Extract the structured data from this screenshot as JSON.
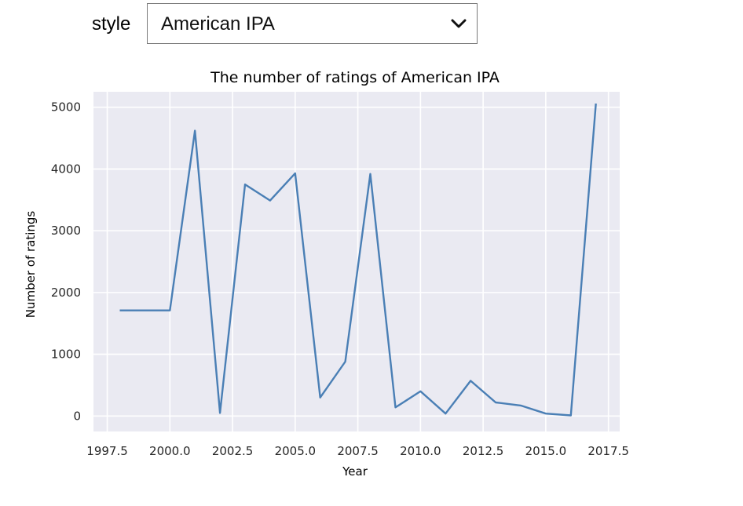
{
  "widget": {
    "label": "style",
    "selected": "American IPA"
  },
  "icons": {
    "dropdown": "chevron-down-icon"
  },
  "colors": {
    "line": "#4a7fb5",
    "plot_bg": "#eaeaf2",
    "grid": "#ffffff",
    "text": "#262626"
  },
  "chart_data": {
    "type": "line",
    "title": "The number of ratings of American IPA",
    "xlabel": "Year",
    "ylabel": "Number of ratings",
    "xlim": [
      1996.95,
      2017.95
    ],
    "ylim": [
      -250,
      5250
    ],
    "xticks": [
      1997.5,
      2000.0,
      2002.5,
      2005.0,
      2007.5,
      2010.0,
      2012.5,
      2015.0,
      2017.5
    ],
    "xtick_labels": [
      "1997.5",
      "2000.0",
      "2002.5",
      "2005.0",
      "2007.5",
      "2010.0",
      "2012.5",
      "2015.0",
      "2017.5"
    ],
    "yticks": [
      0,
      1000,
      2000,
      3000,
      4000,
      5000
    ],
    "ytick_labels": [
      "0",
      "1000",
      "2000",
      "3000",
      "4000",
      "5000"
    ],
    "grid": true,
    "series": [
      {
        "x": [
          1998,
          1999,
          2000,
          2001,
          2002,
          2003,
          2004,
          2005,
          2006,
          2007,
          2008,
          2009,
          2010,
          2011,
          2012,
          2013,
          2014,
          2015,
          2016,
          2017
        ],
        "values": [
          1710,
          1710,
          1710,
          4620,
          50,
          3750,
          3490,
          3930,
          300,
          880,
          3920,
          140,
          400,
          40,
          570,
          220,
          170,
          40,
          10,
          5060
        ]
      }
    ]
  }
}
